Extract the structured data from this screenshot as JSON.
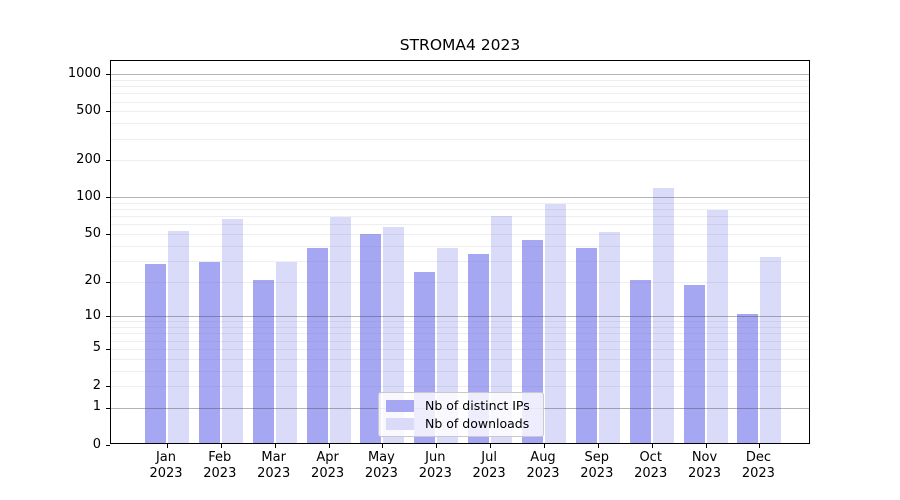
{
  "chart_data": {
    "type": "bar",
    "title": "STROMA4 2023",
    "categories": [
      "Jan 2023",
      "Feb 2023",
      "Mar 2023",
      "Apr 2023",
      "May 2023",
      "Jun 2023",
      "Jul 2023",
      "Aug 2023",
      "Sep 2023",
      "Oct 2023",
      "Nov 2023",
      "Dec 2023"
    ],
    "x_months": [
      "Jan",
      "Feb",
      "Mar",
      "Apr",
      "May",
      "Jun",
      "Jul",
      "Aug",
      "Sep",
      "Oct",
      "Nov",
      "Dec"
    ],
    "x_year": "2023",
    "series": [
      {
        "name": "Nb of distinct IPs",
        "color": "#a5a7f2",
        "values": [
          27,
          28,
          20,
          37,
          48,
          23,
          33,
          43,
          37,
          20,
          18,
          10
        ]
      },
      {
        "name": "Nb of downloads",
        "color": "#d9dbf9",
        "values": [
          51,
          64,
          28,
          66,
          55,
          37,
          68,
          85,
          50,
          115,
          76,
          31
        ]
      }
    ],
    "xlabel": "",
    "ylabel": "",
    "yscale": "log10(1+v)",
    "ylim": [
      0,
      1280
    ],
    "ytick_values": [
      0,
      1,
      2,
      5,
      10,
      20,
      50,
      100,
      200,
      500,
      1000
    ],
    "ytick_labels": [
      "0",
      "1",
      "2",
      "5",
      "10",
      "20",
      "50",
      "100",
      "200",
      "500",
      "1000"
    ],
    "major_grid_values": [
      1,
      10,
      100,
      1000
    ],
    "minor_grid_values": [
      2,
      3,
      4,
      5,
      6,
      7,
      8,
      9,
      20,
      30,
      40,
      50,
      60,
      70,
      80,
      90,
      200,
      300,
      400,
      500,
      600,
      700,
      800,
      900
    ],
    "grid": "on",
    "legend_position": "lower center",
    "colors": {
      "major_grid": "#b0b0b0",
      "minor_grid": "#ebebee",
      "axis": "#000000",
      "background": "#ffffff",
      "text": "#000000"
    }
  }
}
